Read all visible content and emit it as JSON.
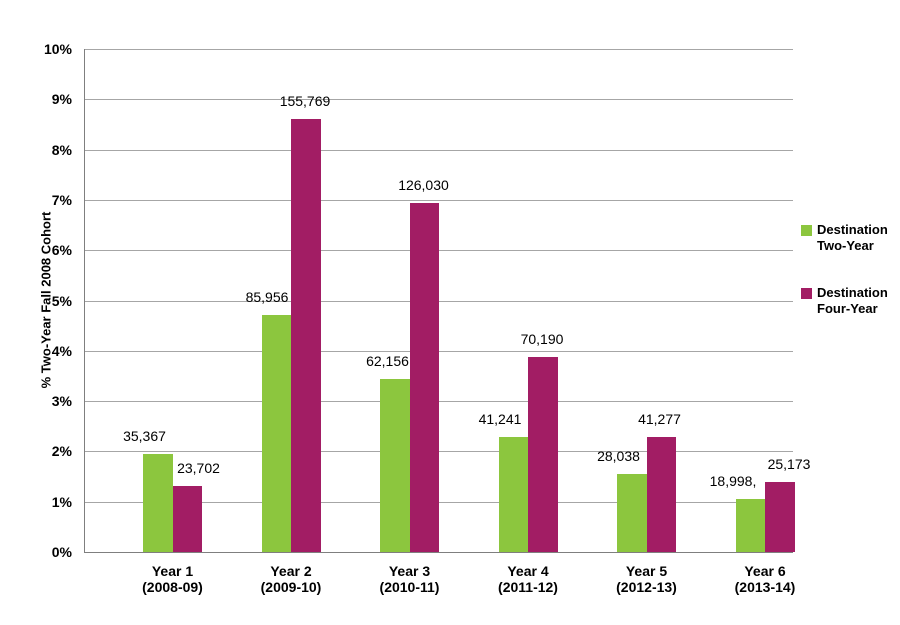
{
  "chart_data": {
    "type": "bar",
    "title": "",
    "xlabel": "",
    "ylabel": "% Two-Year Fall 2008 Cohort",
    "ylim": [
      0,
      10
    ],
    "ytick_step": 1,
    "ytick_format": "{v}%",
    "grid": true,
    "legend_position": "right",
    "categories": [
      {
        "label": "Year 1",
        "sublabel": "(2008-09)"
      },
      {
        "label": "Year 2",
        "sublabel": "(2009-10)"
      },
      {
        "label": "Year 3",
        "sublabel": "(2010-11)"
      },
      {
        "label": "Year 4",
        "sublabel": "(2011-12)"
      },
      {
        "label": "Year 5",
        "sublabel": "(2012-13)"
      },
      {
        "label": "Year 6",
        "sublabel": "(2013-14)"
      }
    ],
    "series": [
      {
        "name": "Destination Two-Year",
        "slug": "two-year",
        "color": "#8CC63E",
        "values": [
          35367,
          85956,
          62156,
          41241,
          28038,
          18998
        ],
        "value_labels": [
          "35,367",
          "85,956",
          "62,156",
          "41,241",
          "28,038",
          "18,998,"
        ],
        "percent_of_cohort": [
          1.95,
          4.72,
          3.44,
          2.29,
          1.56,
          1.06
        ]
      },
      {
        "name": "Destination Four-Year",
        "slug": "four-year",
        "color": "#A21D64",
        "values": [
          23702,
          155769,
          126030,
          70190,
          41277,
          25173
        ],
        "value_labels": [
          "23,702",
          "155,769",
          "126,030",
          "70,190",
          "41,277",
          "25,173"
        ],
        "percent_of_cohort": [
          1.32,
          8.6,
          6.94,
          3.88,
          2.29,
          1.4
        ]
      }
    ],
    "colors": {
      "two_year_bar": "#8CC63E",
      "four_year_bar": "#A21D64",
      "gridline": "#A6A6A6",
      "axis_line": "#7F7F7F",
      "text": "#000000",
      "background": "#FFFFFF"
    }
  }
}
